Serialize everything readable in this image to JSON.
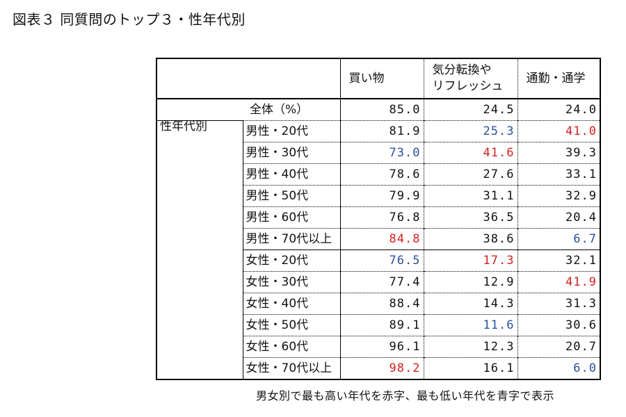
{
  "title": "図表３ 同質問のトップ３・性年代別",
  "headers": [
    "",
    "",
    "買い物",
    "気分転換や\nリフレッシュ",
    "通勤・通学"
  ],
  "total": {
    "label": "全体（%）",
    "values": [
      "85.0",
      "24.5",
      "24.0"
    ]
  },
  "group_label": "性年代別",
  "rows": [
    {
      "label": "男性・20代",
      "values": [
        "81.9",
        "25.3",
        "41.0"
      ],
      "colors": [
        "",
        "blue",
        "red"
      ]
    },
    {
      "label": "男性・30代",
      "values": [
        "73.0",
        "41.6",
        "39.3"
      ],
      "colors": [
        "blue",
        "red",
        ""
      ]
    },
    {
      "label": "男性・40代",
      "values": [
        "78.6",
        "27.6",
        "33.1"
      ],
      "colors": [
        "",
        "",
        ""
      ]
    },
    {
      "label": "男性・50代",
      "values": [
        "79.9",
        "31.1",
        "32.9"
      ],
      "colors": [
        "",
        "",
        ""
      ]
    },
    {
      "label": "男性・60代",
      "values": [
        "76.8",
        "36.5",
        "20.4"
      ],
      "colors": [
        "",
        "",
        ""
      ]
    },
    {
      "label": "男性・70代以上",
      "values": [
        "84.8",
        "38.6",
        "6.7"
      ],
      "colors": [
        "red",
        "",
        "blue"
      ]
    },
    {
      "label": "女性・20代",
      "values": [
        "76.5",
        "17.3",
        "32.1"
      ],
      "colors": [
        "blue",
        "red",
        ""
      ]
    },
    {
      "label": "女性・30代",
      "values": [
        "77.4",
        "12.9",
        "41.9"
      ],
      "colors": [
        "",
        "",
        "red"
      ]
    },
    {
      "label": "女性・40代",
      "values": [
        "88.4",
        "14.3",
        "31.3"
      ],
      "colors": [
        "",
        "",
        ""
      ]
    },
    {
      "label": "女性・50代",
      "values": [
        "89.1",
        "11.6",
        "30.6"
      ],
      "colors": [
        "",
        "blue",
        ""
      ]
    },
    {
      "label": "女性・60代",
      "values": [
        "96.1",
        "12.3",
        "20.7"
      ],
      "colors": [
        "",
        "",
        ""
      ]
    },
    {
      "label": "女性・70代以上",
      "values": [
        "98.2",
        "16.1",
        "6.0"
      ],
      "colors": [
        "red",
        "",
        "blue"
      ]
    }
  ],
  "note": "男女別で最も高い年代を赤字、最も低い年代を青字で表示",
  "colors": {
    "red": "#d42020",
    "blue": "#2a4f9c"
  }
}
